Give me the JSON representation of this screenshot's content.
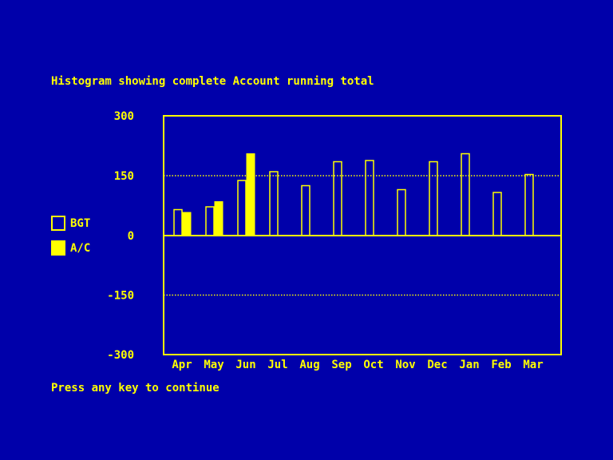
{
  "title": "Histogram showing complete Account running total",
  "footer": "Press any key to continue",
  "legend": [
    {
      "label": "BGT",
      "style": "outline"
    },
    {
      "label": "A/C",
      "style": "filled"
    }
  ],
  "colors": {
    "background": "#0000aa",
    "foreground": "#ffff00"
  },
  "chart_data": {
    "type": "bar",
    "categories": [
      "Apr",
      "May",
      "Jun",
      "Jul",
      "Aug",
      "Sep",
      "Oct",
      "Nov",
      "Dec",
      "Jan",
      "Feb",
      "Mar"
    ],
    "series": [
      {
        "name": "BGT",
        "style": "outline",
        "values": [
          65,
          72,
          138,
          160,
          125,
          185,
          188,
          115,
          185,
          205,
          108,
          153
        ]
      },
      {
        "name": "A/C",
        "style": "filled",
        "values": [
          58,
          85,
          205,
          null,
          null,
          null,
          null,
          null,
          null,
          null,
          null,
          null
        ]
      }
    ],
    "ylim": [
      -300,
      300
    ],
    "yticks": [
      "300",
      "150",
      "0",
      "-150",
      "-300"
    ],
    "ytick_values": [
      300,
      150,
      0,
      -150,
      -300
    ],
    "dotted_gridlines": [
      150,
      -150
    ],
    "zero_line": true,
    "legend_position": "left"
  }
}
